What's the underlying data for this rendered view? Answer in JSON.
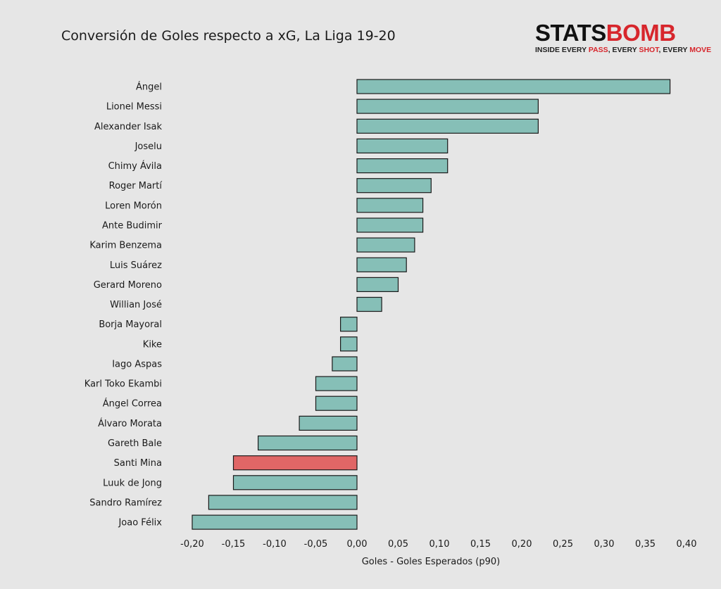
{
  "header": {
    "title": "Conversión de Goles respecto a xG, La Liga 19-20"
  },
  "logo": {
    "wordmark_part1": "STATS",
    "wordmark_part2": "BOMB",
    "tagline": [
      {
        "text": "INSIDE EVERY ",
        "highlight": false
      },
      {
        "text": "PASS",
        "highlight": true
      },
      {
        "text": ", EVERY ",
        "highlight": false
      },
      {
        "text": "SHOT",
        "highlight": true
      },
      {
        "text": ", EVERY ",
        "highlight": false
      },
      {
        "text": "MOVE",
        "highlight": true
      }
    ],
    "accent_color": "#d7262c"
  },
  "chart_data": {
    "type": "bar",
    "orientation": "horizontal",
    "categories": [
      "Ángel",
      "Lionel Messi",
      "Alexander Isak",
      "Joselu",
      "Chimy Ávila",
      "Roger Martí",
      "Loren Morón",
      "Ante Budimir",
      "Karim Benzema",
      "Luis Suárez",
      "Gerard Moreno",
      "Willian José",
      "Borja Mayoral",
      "Kike",
      "Iago Aspas",
      "Karl Toko Ekambi",
      "Ángel Correa",
      "Álvaro Morata",
      "Gareth Bale",
      "Santi Mina",
      "Luuk de Jong",
      "Sandro Ramírez",
      "Joao Félix"
    ],
    "values": [
      0.38,
      0.22,
      0.22,
      0.11,
      0.11,
      0.09,
      0.08,
      0.08,
      0.07,
      0.06,
      0.05,
      0.03,
      -0.02,
      -0.02,
      -0.03,
      -0.05,
      -0.05,
      -0.07,
      -0.12,
      -0.15,
      -0.15,
      -0.18,
      -0.2
    ],
    "highlight": "Santi Mina",
    "colors": {
      "default": "#86bfb7",
      "highlight": "#e06666",
      "edge": "#1a1a1a"
    },
    "xlabel": "Goles - Goles Esperados (p90)",
    "ylabel": "",
    "xlim": [
      -0.22,
      0.4
    ],
    "xticks": [
      -0.2,
      -0.15,
      -0.1,
      -0.05,
      0.0,
      0.05,
      0.1,
      0.15,
      0.2,
      0.25,
      0.3,
      0.35,
      0.4
    ],
    "xtick_labels": [
      "-0,20",
      "-0,15",
      "-0,10",
      "-0,05",
      "0,00",
      "0,05",
      "0,10",
      "0,15",
      "0,20",
      "0,25",
      "0,30",
      "0,35",
      "0,40"
    ],
    "grid": false,
    "legend": "none"
  }
}
